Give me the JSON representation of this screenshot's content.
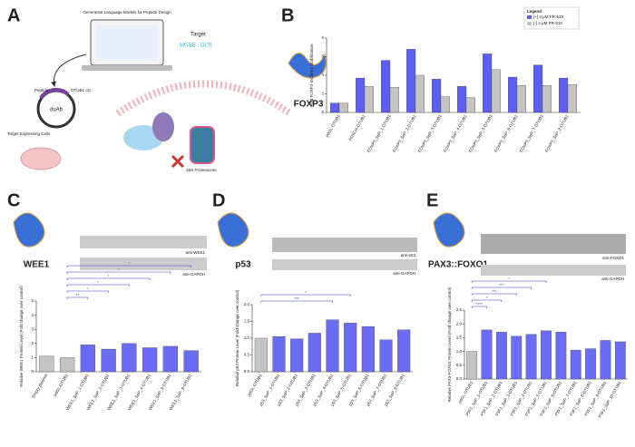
{
  "figure": {
    "A": {
      "label": "A",
      "title": "Generative Language Models for Peptide Design",
      "target": "Target",
      "sequence": "MGSE...GLTI",
      "peptide": "Peptide",
      "otub1": "OTUB1 cD",
      "duab": "duAb",
      "cells": "Target Expressing Cells",
      "proteasome": "26S Proteasome"
    },
    "B": {
      "label": "B",
      "protein": "FOXP3"
    },
    "C": {
      "label": "C",
      "protein": "WEE1",
      "blots": [
        "anti-WEE1",
        "anti-GAPDH"
      ]
    },
    "D": {
      "label": "D",
      "protein": "p53",
      "blots": [
        "anti-p53",
        "anti-GAPDH"
      ]
    },
    "E": {
      "label": "E",
      "protein": "PAX3::FOXO1",
      "blots": [
        "anti-FOXO1",
        "anti-GAPDH"
      ]
    }
  },
  "chart_data": [
    {
      "type": "bar",
      "y_label": "Fold FOXP3-mCherry Stabilization",
      "categories": [
        "pdGL-OTUB1",
        "FOXOA-OTUB1",
        "FOXP3_SaP_1-OTUB1",
        "FOXP3_SaP_2-OTUB1",
        "FOXP3_SaP_3-OTUB1",
        "FOXP3_SaP_4-OTUB1",
        "FOXP3_SaP_5-OTUB1",
        "FOXP3_SaP_6-OTUB1",
        "FOXP3_SaP_7-OTUB1",
        "FOXP3_SaP_8-OTUB1"
      ],
      "series": [
        {
          "name": "[+] 4 μM PR-619",
          "color": "#5d5ff0",
          "values": [
            1.0,
            3.7,
            5.6,
            6.8,
            3.6,
            2.8,
            6.3,
            3.8,
            5.1,
            3.7
          ]
        },
        {
          "name": "[-] 4 μM PR-619",
          "color": "#c4c4c4",
          "values": [
            1.0,
            2.8,
            2.7,
            4.0,
            1.7,
            1.6,
            4.6,
            2.9,
            2.9,
            3.0
          ]
        }
      ],
      "legend_title": "Legend",
      "legend": "upper right",
      "ylim": [
        0,
        8
      ],
      "yticks": [
        0,
        2,
        4,
        6,
        8
      ]
    },
    {
      "type": "bar",
      "y_label": "Relative WEE1 Protein Level (Fold change over control)",
      "categories": [
        "Empty plasmid",
        "pdGL-OTUB1",
        "WEE1_SaP_1-OTUB1",
        "WEE1_SaP_2-OTUB1",
        "WEE1_SaP_3-OTUB1",
        "WEE1_SaP_4-OTUB1",
        "WEE1_SaP_5-OTUB1",
        "WEE1_SaP_6-OTUB1"
      ],
      "values": [
        1.1,
        1.0,
        1.9,
        1.6,
        2.0,
        1.7,
        1.8,
        1.5
      ],
      "colors": [
        "#c4c4c4",
        "#c4c4c4",
        "#6a6cf2",
        "#6a6cf2",
        "#6a6cf2",
        "#6a6cf2",
        "#6a6cf2",
        "#6a6cf2"
      ],
      "annotations": [
        {
          "label": "**",
          "to": "WEE1_SaP_1-OTUB1"
        },
        {
          "label": "*",
          "to": "WEE1_SaP_2-OTUB1"
        },
        {
          "label": "*",
          "to": "WEE1_SaP_3-OTUB1"
        },
        {
          "label": "*",
          "to": "WEE1_SaP_4-OTUB1"
        },
        {
          "label": "*",
          "to": "WEE1_SaP_5-OTUB1"
        },
        {
          "label": "*",
          "to": "WEE1_SaP_6-OTUB1"
        }
      ],
      "annotation_from": "pdGL-OTUB1",
      "ylim": [
        0,
        5
      ],
      "yticks": [
        0,
        1,
        2,
        3,
        4,
        5
      ]
    },
    {
      "type": "bar",
      "y_label": "Relative p53 Protein Level (Fold change over control)",
      "categories": [
        "pdGL-OTUB1",
        "p53_SaP_1-OTUB1",
        "p53_SaP_2-OTUB1",
        "p53_SaP_3-OTUB1",
        "p53_SaP_4-OTUB1",
        "p53_SaP_5-OTUB1",
        "p53_SaP_6-OTUB1",
        "p53_SaP_7-OTUB1",
        "p53_SaP_8-OTUB1"
      ],
      "values": [
        1.0,
        1.05,
        0.98,
        1.15,
        1.55,
        1.45,
        1.35,
        0.95,
        1.25
      ],
      "colors": [
        "#c4c4c4",
        "#6a6cf2",
        "#6a6cf2",
        "#6a6cf2",
        "#6a6cf2",
        "#6a6cf2",
        "#6a6cf2",
        "#6a6cf2",
        "#6a6cf2"
      ],
      "annotations": [
        {
          "label": "***",
          "to": "p53_SaP_4-OTUB1"
        },
        {
          "label": "*",
          "to": "p53_SaP_5-OTUB1"
        }
      ],
      "annotation_from": "pdGL-OTUB1",
      "ylim": [
        0,
        2
      ],
      "yticks": [
        {
          "value": 0,
          "label": "0.0"
        },
        {
          "value": 0.5,
          "label": "0.5"
        },
        {
          "value": 1,
          "label": "1.0"
        },
        {
          "value": 1.5,
          "label": "1.5"
        },
        {
          "value": 2,
          "label": "2.0"
        }
      ]
    },
    {
      "type": "bar",
      "y_label": "Relative PAX3-FOXO1 Protein Level (Fold change over control)",
      "categories": [
        "pdGL-OTUB1",
        "P3F1_SaP_1-OTUB1",
        "P3F1_SaP_2-OTUB1",
        "P3F1_SaP_3-OTUB1",
        "P3F1_SaP_4-OTUB1",
        "P3F1_SaP_5-OTUB1",
        "P3F1_SaP_6-OTUB1",
        "P3F1_SaP_7-OTUB1",
        "P3F1_SaP_8-OTUB1",
        "P3F1_SaP_9-OTUB1",
        "P3F1_SaP_10-OTUB1"
      ],
      "values": [
        1.0,
        1.78,
        1.7,
        1.55,
        1.62,
        1.75,
        1.7,
        1.05,
        1.1,
        1.4,
        1.35
      ],
      "colors": [
        "#c4c4c4",
        "#6a6cf2",
        "#6a6cf2",
        "#6a6cf2",
        "#6a6cf2",
        "#6a6cf2",
        "#6a6cf2",
        "#6a6cf2",
        "#6a6cf2",
        "#6a6cf2",
        "#6a6cf2"
      ],
      "annotations": [
        {
          "label": "****",
          "to": "P3F1_SaP_1-OTUB1"
        },
        {
          "label": "*",
          "to": "P3F1_SaP_2-OTUB1"
        },
        {
          "label": "***",
          "to": "P3F1_SaP_3-OTUB1"
        },
        {
          "label": "***",
          "to": "P3F1_SaP_4-OTUB1"
        },
        {
          "label": "*",
          "to": "P3F1_SaP_5-OTUB1"
        }
      ],
      "annotation_from": "pdGL-OTUB1",
      "ylim": [
        0,
        2.5
      ],
      "yticks": [
        {
          "value": 0,
          "label": "0.0"
        },
        {
          "value": 0.5,
          "label": "0.5"
        },
        {
          "value": 1,
          "label": "1.0"
        },
        {
          "value": 1.5,
          "label": "1.5"
        },
        {
          "value": 2,
          "label": "2.0"
        },
        {
          "value": 2.5,
          "label": "2.5"
        }
      ]
    }
  ]
}
